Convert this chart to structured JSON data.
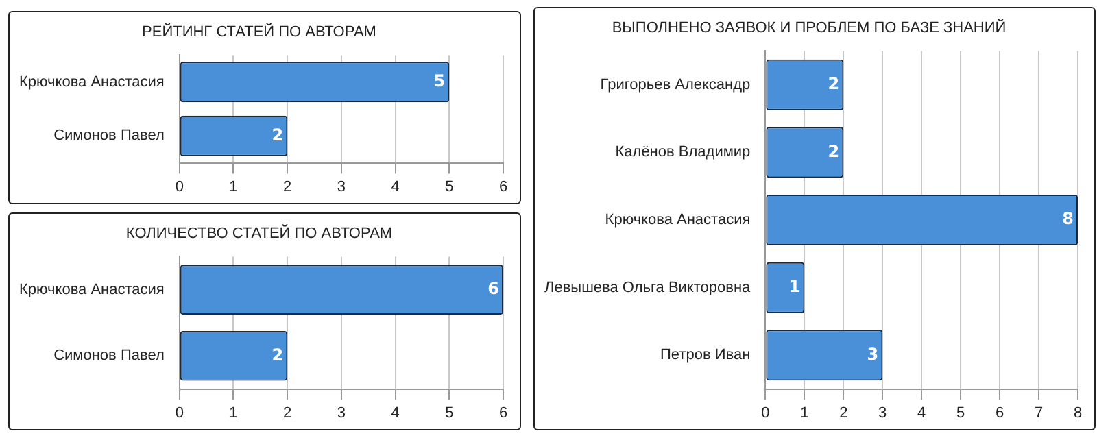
{
  "chart_data": [
    {
      "type": "bar",
      "orientation": "horizontal",
      "title": "РЕЙТИНГ СТАТЕЙ ПО АВТОРАМ",
      "categories": [
        "Крючкова Анастасия",
        "Симонов Павел"
      ],
      "values": [
        5,
        2
      ],
      "color": "#4a90d9",
      "xlim": [
        0,
        6
      ],
      "xticks": [
        0,
        1,
        2,
        3,
        4,
        5,
        6
      ],
      "grid": "x",
      "data_labels": true
    },
    {
      "type": "bar",
      "orientation": "horizontal",
      "title": "КОЛИЧЕСТВО СТАТЕЙ ПО АВТОРАМ",
      "categories": [
        "Крючкова Анастасия",
        "Симонов Павел"
      ],
      "values": [
        6,
        2
      ],
      "color": "#4a90d9",
      "xlim": [
        0,
        6
      ],
      "xticks": [
        0,
        1,
        2,
        3,
        4,
        5,
        6
      ],
      "grid": "x",
      "data_labels": true
    },
    {
      "type": "bar",
      "orientation": "horizontal",
      "title": "ВЫПОЛНЕНО ЗАЯВОК И ПРОБЛЕМ ПО БАЗЕ ЗНАНИЙ",
      "categories": [
        "Григорьев Александр",
        "Калёнов Владимир",
        "Крючкова Анастасия",
        "Левышева Ольга Викторовна",
        "Петров Иван"
      ],
      "values": [
        2,
        2,
        8,
        1,
        3
      ],
      "color": "#4a90d9",
      "xlim": [
        0,
        8
      ],
      "xticks": [
        0,
        1,
        2,
        3,
        4,
        5,
        6,
        7,
        8
      ],
      "grid": "x",
      "data_labels": true
    }
  ]
}
